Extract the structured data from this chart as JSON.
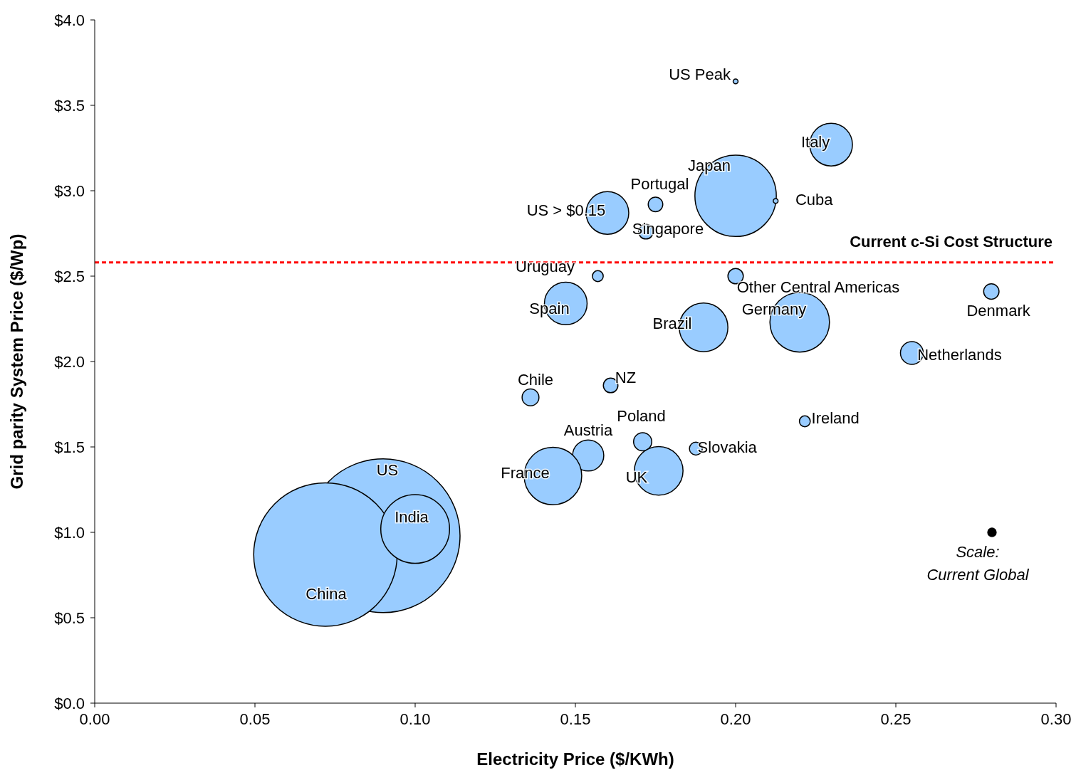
{
  "chart_data": {
    "type": "bubble",
    "xlabel": "Electricity Price ($/KWh)",
    "ylabel": "Grid parity System Price ($/Wp)",
    "x": [
      0.09,
      0.072,
      0.1,
      0.2,
      0.2298,
      0.2,
      0.2125,
      0.175,
      0.16,
      0.172,
      0.157,
      0.2,
      0.2798,
      0.147,
      0.19,
      0.22,
      0.255,
      0.161,
      0.136,
      0.2216,
      0.171,
      0.154,
      0.1876,
      0.143,
      0.176,
      0.28
    ],
    "values": [
      0.98,
      0.87,
      1.02,
      3.64,
      3.27,
      2.97,
      2.94,
      2.92,
      2.87,
      2.76,
      2.5,
      2.5,
      2.41,
      2.34,
      2.2,
      2.23,
      2.05,
      1.86,
      1.79,
      1.65,
      1.53,
      1.45,
      1.49,
      1.33,
      1.36,
      1.0
    ],
    "sizes": [
      1,
      0.87,
      0.2,
      0.001,
      0.077,
      0.28,
      0.001,
      0.009,
      0.077,
      0.009,
      0.005,
      0.01,
      0.01,
      0.077,
      0.1,
      0.15,
      0.022,
      0.009,
      0.012,
      0.005,
      0.014,
      0.041,
      0.007,
      0.14,
      0.1,
      0.003
    ],
    "colors": [
      "#99ccff",
      "#99ccff",
      "#99ccff",
      "#99ccff",
      "#99ccff",
      "#99ccff",
      "#99ccff",
      "#99ccff",
      "#99ccff",
      "#99ccff",
      "#99ccff",
      "#99ccff",
      "#99ccff",
      "#99ccff",
      "#99ccff",
      "#99ccff",
      "#99ccff",
      "#99ccff",
      "#99ccff",
      "#99ccff",
      "#99ccff",
      "#99ccff",
      "#99ccff",
      "#99ccff",
      "#99ccff",
      "#000000"
    ],
    "xlim": [
      0,
      0.3
    ],
    "xticks": [
      {
        "value": 0,
        "label": "0.00"
      },
      {
        "value": 0.05,
        "label": "0.05"
      },
      {
        "value": 0.1,
        "label": "0.10"
      },
      {
        "value": 0.15,
        "label": "0.15"
      },
      {
        "value": 0.2,
        "label": "0.20"
      },
      {
        "value": 0.25,
        "label": "0.25"
      },
      {
        "value": 0.3,
        "label": "0.30"
      }
    ],
    "ylim": [
      0,
      4
    ],
    "yticks": [
      {
        "value": 0,
        "label": "$0.0"
      },
      {
        "value": 0.5,
        "label": "$0.5"
      },
      {
        "value": 1,
        "label": "$1.0"
      },
      {
        "value": 1.5,
        "label": "$1.5"
      },
      {
        "value": 2,
        "label": "$2.0"
      },
      {
        "value": 2.5,
        "label": "$2.5"
      },
      {
        "value": 3,
        "label": "$3.0"
      },
      {
        "value": 3.5,
        "label": "$3.5"
      },
      {
        "value": 4,
        "label": "$4.0"
      }
    ],
    "ref_lines": [
      {
        "axis": "y",
        "value": 2.58,
        "label": "Current c-Si Cost Structure",
        "color": "#ff0000",
        "line_style": "dashed"
      }
    ],
    "annotations": [
      "US",
      {
        "text": "China",
        "x": 0.072,
        "y": 0.87
      },
      {
        "text": "India",
        "x": 0.1,
        "y": 1.02
      },
      {
        "text": "US Peak",
        "x": 0.2,
        "y": 3.64
      },
      {
        "text": "Italy",
        "x": 0.2298,
        "y": 3.27
      },
      {
        "text": "Japan",
        "x": 0.2,
        "y": 2.97
      },
      {
        "text": "Cuba",
        "x": 0.2125,
        "y": 2.94
      },
      {
        "text": "Portugal",
        "x": 0.175,
        "y": 2.92
      },
      {
        "text": "US > $0.15",
        "x": 0.16,
        "y": 2.87
      },
      {
        "text": "Singapore",
        "x": 0.172,
        "y": 2.76
      },
      {
        "text": "Uruguay",
        "x": 0.157,
        "y": 2.5
      },
      {
        "text": "Other Central Americas",
        "x": 0.2,
        "y": 2.5
      },
      {
        "text": "Denmark",
        "x": 0.2798,
        "y": 2.41
      },
      {
        "text": "Spain",
        "x": 0.147,
        "y": 2.34
      },
      {
        "text": "Brazil",
        "x": 0.19,
        "y": 2.2
      },
      {
        "text": "Germany",
        "x": 0.22,
        "y": 2.23
      },
      {
        "text": "Netherlands",
        "x": 0.255,
        "y": 2.05
      },
      {
        "text": "NZ",
        "x": 0.161,
        "y": 1.86
      },
      {
        "text": "Chile",
        "x": 0.136,
        "y": 1.79
      },
      {
        "text": "Ireland",
        "x": 0.2216,
        "y": 1.65
      },
      {
        "text": "Poland",
        "x": 0.171,
        "y": 1.53
      },
      {
        "text": "Austria",
        "x": 0.154,
        "y": 1.45
      },
      {
        "text": "Slovakia",
        "x": 0.1876,
        "y": 1.49
      },
      {
        "text": "France",
        "x": 0.143,
        "y": 1.33
      },
      {
        "text": "UK",
        "x": 0.176,
        "y": 1.36
      },
      {
        "text": "Scale:\nCurrent Global",
        "x": 0.28,
        "y": 1.0
      }
    ]
  }
}
